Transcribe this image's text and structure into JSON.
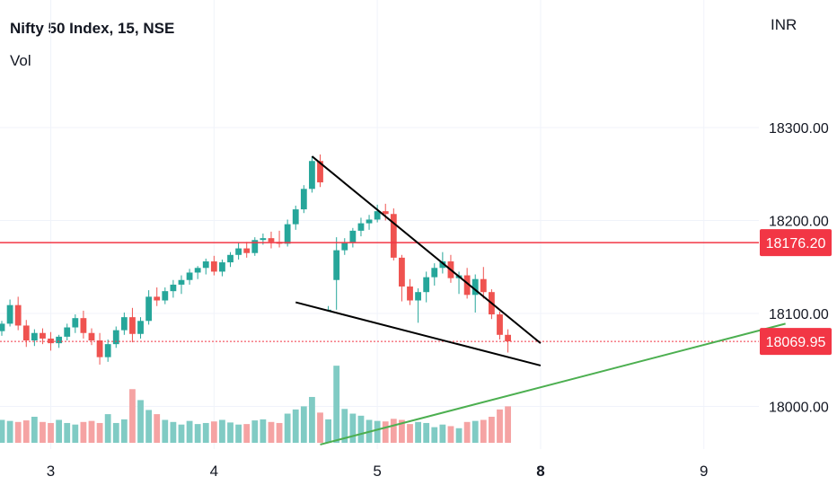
{
  "header": {
    "title": "Nifty 50 Index, 15, NSE",
    "volume_label": "Vol",
    "currency": "INR"
  },
  "colors": {
    "up": "#26a69a",
    "down": "#ef5350",
    "vol_up": "#80cbc4",
    "vol_down": "#f5a3a3",
    "price_tag_bg": "#f23645",
    "horizontal_line": "#f23645",
    "trendline": "#000000",
    "support_line": "#4caf50",
    "grid": "#f0f3fa",
    "axis_text": "#131722"
  },
  "chart_data": {
    "type": "candlestick",
    "symbol": "Nifty 50 Index",
    "interval": "15",
    "exchange": "NSE",
    "y_axis": {
      "ticks": [
        {
          "value": 18300,
          "label": "18300.00"
        },
        {
          "value": 18200,
          "label": "18200.00"
        },
        {
          "value": 18100,
          "label": "18100.00"
        },
        {
          "value": 18000,
          "label": "18000.00"
        }
      ]
    },
    "x_axis": {
      "ticks": [
        {
          "bar": 6,
          "label": "3",
          "bold": false
        },
        {
          "bar": 26,
          "label": "4",
          "bold": false
        },
        {
          "bar": 46,
          "label": "5",
          "bold": false
        },
        {
          "bar": 66,
          "label": "8",
          "bold": true
        },
        {
          "bar": 86,
          "label": "9",
          "bold": false
        }
      ]
    },
    "price_tags": [
      {
        "value": 18176.2,
        "label": "18176.20",
        "style": "solid"
      },
      {
        "value": 18069.95,
        "label": "18069.95",
        "style": "dotted"
      }
    ],
    "candles": [
      [
        18081,
        18092,
        18076,
        18089
      ],
      [
        18089,
        18115,
        18086,
        18109
      ],
      [
        18109,
        18118,
        18082,
        18087
      ],
      [
        18087,
        18093,
        18064,
        18071
      ],
      [
        18071,
        18083,
        18065,
        18079
      ],
      [
        18079,
        18084,
        18067,
        18073
      ],
      [
        18073,
        18080,
        18060,
        18068
      ],
      [
        18068,
        18077,
        18063,
        18075
      ],
      [
        18075,
        18089,
        18071,
        18085
      ],
      [
        18085,
        18099,
        18079,
        18095
      ],
      [
        18095,
        18103,
        18073,
        18079
      ],
      [
        18079,
        18084,
        18066,
        18071
      ],
      [
        18071,
        18079,
        18045,
        18053
      ],
      [
        18053,
        18072,
        18048,
        18067
      ],
      [
        18067,
        18086,
        18063,
        18082
      ],
      [
        18082,
        18101,
        18077,
        18096
      ],
      [
        18096,
        18106,
        18069,
        18078
      ],
      [
        18078,
        18096,
        18073,
        18092
      ],
      [
        18092,
        18125,
        18088,
        18118
      ],
      [
        18118,
        18128,
        18108,
        18114
      ],
      [
        18114,
        18128,
        18110,
        18124
      ],
      [
        18124,
        18136,
        18117,
        18131
      ],
      [
        18131,
        18141,
        18121,
        18136
      ],
      [
        18136,
        18148,
        18131,
        18144
      ],
      [
        18144,
        18151,
        18137,
        18149
      ],
      [
        18149,
        18159,
        18142,
        18156
      ],
      [
        18156,
        18162,
        18141,
        18145
      ],
      [
        18145,
        18158,
        18140,
        18155
      ],
      [
        18155,
        18166,
        18150,
        18163
      ],
      [
        18163,
        18176,
        18158,
        18170
      ],
      [
        18170,
        18177,
        18160,
        18165
      ],
      [
        18165,
        18182,
        18162,
        18179
      ],
      [
        18179,
        18186,
        18174,
        18181
      ],
      [
        18181,
        18188,
        18170,
        18177
      ],
      [
        18177,
        18189,
        18171,
        18175
      ],
      [
        18175,
        18201,
        18172,
        18196
      ],
      [
        18196,
        18216,
        18190,
        18212
      ],
      [
        18212,
        18238,
        18208,
        18234
      ],
      [
        18234,
        18269,
        18230,
        18264
      ],
      [
        18264,
        18271,
        18236,
        18241
      ],
      [
        18103,
        18108,
        18102,
        18104
      ],
      [
        18136,
        18182,
        18104,
        18168
      ],
      [
        18168,
        18181,
        18163,
        18176
      ],
      [
        18176,
        18192,
        18171,
        18189
      ],
      [
        18189,
        18203,
        18183,
        18197
      ],
      [
        18197,
        18206,
        18190,
        18201
      ],
      [
        18201,
        18217,
        18198,
        18210
      ],
      [
        18210,
        18218,
        18200,
        18207
      ],
      [
        18207,
        18213,
        18157,
        18160
      ],
      [
        18160,
        18163,
        18113,
        18129
      ],
      [
        18129,
        18137,
        18109,
        18114
      ],
      [
        18114,
        18127,
        18090,
        18123
      ],
      [
        18123,
        18145,
        18112,
        18139
      ],
      [
        18139,
        18154,
        18130,
        18149
      ],
      [
        18149,
        18166,
        18143,
        18156
      ],
      [
        18156,
        18163,
        18133,
        18138
      ],
      [
        18138,
        18145,
        18121,
        18141
      ],
      [
        18141,
        18149,
        18116,
        18120
      ],
      [
        18120,
        18142,
        18101,
        18137
      ],
      [
        18137,
        18150,
        18116,
        18123
      ],
      [
        18123,
        18126,
        18094,
        18099
      ],
      [
        18099,
        18102,
        18072,
        18077
      ],
      [
        18077,
        18083,
        18058,
        18070
      ]
    ],
    "volume": [
      44,
      42,
      40,
      43,
      50,
      40,
      38,
      44,
      38,
      35,
      40,
      42,
      38,
      55,
      38,
      45,
      103,
      82,
      63,
      55,
      44,
      40,
      35,
      42,
      36,
      38,
      41,
      44,
      39,
      35,
      36,
      43,
      45,
      40,
      38,
      56,
      64,
      70,
      88,
      58,
      45,
      148,
      65,
      56,
      52,
      44,
      42,
      41,
      46,
      44,
      36,
      40,
      38,
      30,
      35,
      32,
      28,
      40,
      42,
      44,
      50,
      64,
      70
    ],
    "trendlines": [
      {
        "name": "upper-resistance",
        "from": {
          "bar": 38,
          "value": 18269
        },
        "to": {
          "bar": 66,
          "value": 18068
        }
      },
      {
        "name": "lower-support",
        "from": {
          "bar": 36,
          "value": 18112
        },
        "to": {
          "bar": 66,
          "value": 18044
        }
      },
      {
        "name": "green-rising",
        "from": {
          "bar": 39,
          "value": 17959
        },
        "to": {
          "bar": 96,
          "value": 18089
        }
      }
    ]
  }
}
